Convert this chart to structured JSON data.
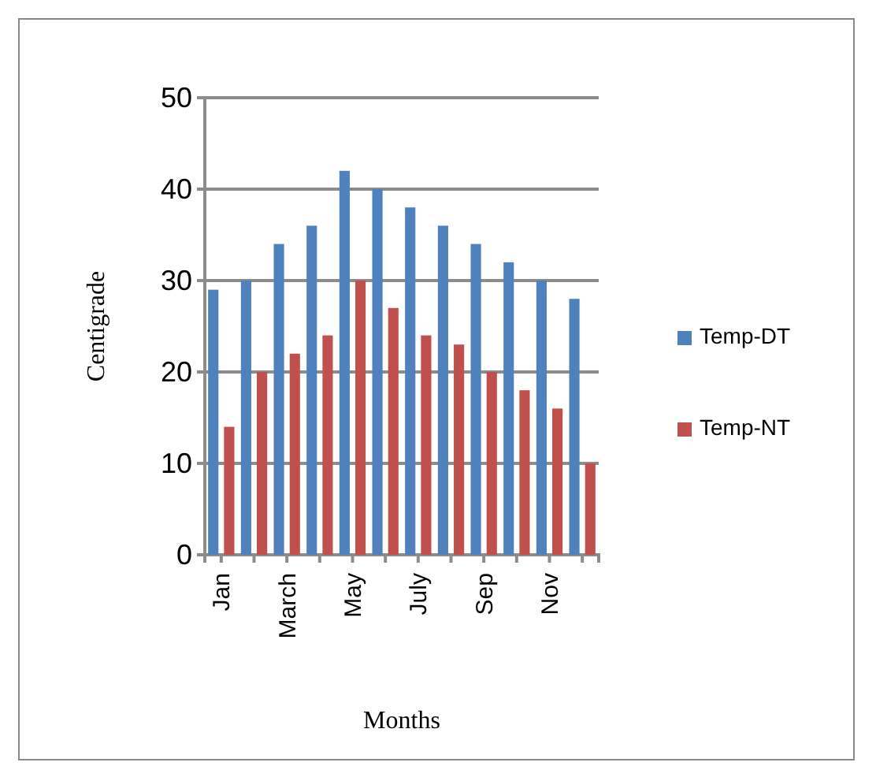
{
  "chart_data": {
    "type": "bar",
    "xlabel": "Months",
    "ylabel": "Centigrade",
    "categories": [
      "Jan",
      null,
      "March",
      null,
      "May",
      null,
      "July",
      null,
      "Sep",
      null,
      "Nov",
      null
    ],
    "series": [
      {
        "name": "Temp-DT",
        "color": "#4f81bd",
        "values": [
          29,
          30,
          34,
          36,
          42,
          40,
          38,
          36,
          34,
          32,
          30,
          28
        ]
      },
      {
        "name": "Temp-NT",
        "color": "#c0504d",
        "values": [
          14,
          20,
          22,
          24,
          30,
          27,
          24,
          23,
          20,
          18,
          16,
          10
        ]
      }
    ],
    "ylim": [
      0,
      50
    ],
    "yticks": [
      0,
      10,
      20,
      30,
      40,
      50
    ],
    "grid": "y",
    "legend": "right"
  }
}
